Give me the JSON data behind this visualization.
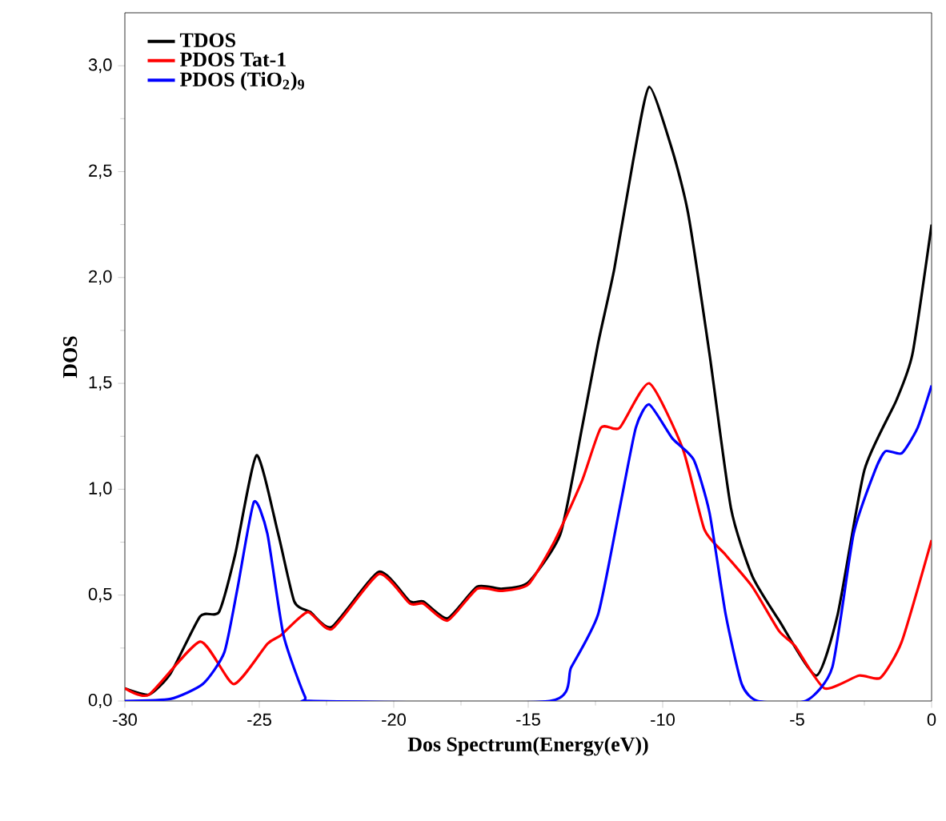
{
  "chart_data": {
    "type": "line",
    "xlabel": "Dos Spectrum(Energy(eV))",
    "ylabel": "DOS",
    "legend": "top left",
    "xlim": [
      -30,
      0
    ],
    "ylim": [
      0,
      3.25
    ],
    "xticks": [
      -30,
      -25,
      -20,
      -15,
      -10,
      -5,
      0
    ],
    "yticks": [
      {
        "value": 0,
        "label": "0,0"
      },
      {
        "value": 0.5,
        "label": "0,5"
      },
      {
        "value": 1,
        "label": "1,0"
      },
      {
        "value": 1.5,
        "label": "1,5"
      },
      {
        "value": 2,
        "label": "2,0"
      },
      {
        "value": 2.5,
        "label": "2,5"
      },
      {
        "value": 3,
        "label": "3,0"
      }
    ],
    "series": [
      {
        "name": "TDOS",
        "color": "#000000",
        "x": [
          -30,
          -29.1,
          -28.3,
          -27.2,
          -26.5,
          -25.9,
          -25.1,
          -24.3,
          -23.7,
          -23.1,
          -22.3,
          -20.55,
          -19.4,
          -18.9,
          -18.0,
          -16.9,
          -16.0,
          -15.0,
          -13.8,
          -13.0,
          -12.4,
          -11.8,
          -11.1,
          -10.5,
          -9.64,
          -9.05,
          -8.26,
          -7.46,
          -6.67,
          -5.67,
          -4.29,
          -3.49,
          -2.5,
          -1.31,
          -0.71,
          0
        ],
        "values": [
          0.06,
          0.03,
          0.13,
          0.4,
          0.42,
          0.69,
          1.16,
          0.79,
          0.47,
          0.42,
          0.35,
          0.61,
          0.47,
          0.47,
          0.39,
          0.54,
          0.53,
          0.56,
          0.79,
          1.29,
          1.69,
          2.04,
          2.55,
          2.9,
          2.6,
          2.3,
          1.64,
          0.91,
          0.59,
          0.38,
          0.12,
          0.41,
          1.09,
          1.42,
          1.64,
          2.25
        ]
      },
      {
        "name": "PDOS Tat-1",
        "color": "#ff0000",
        "x": [
          -30,
          -29.1,
          -27.2,
          -25.95,
          -24.7,
          -24.2,
          -23.2,
          -22.3,
          -20.55,
          -19.4,
          -18.9,
          -18.0,
          -16.9,
          -16.0,
          -15.0,
          -14.0,
          -13.0,
          -12.3,
          -11.6,
          -10.5,
          -9.25,
          -8.45,
          -7.66,
          -6.67,
          -5.67,
          -5.08,
          -3.99,
          -2.7,
          -1.9,
          -1.11,
          0
        ],
        "values": [
          0.06,
          0.03,
          0.28,
          0.08,
          0.27,
          0.31,
          0.42,
          0.34,
          0.6,
          0.46,
          0.46,
          0.38,
          0.53,
          0.52,
          0.55,
          0.76,
          1.04,
          1.29,
          1.29,
          1.5,
          1.19,
          0.81,
          0.69,
          0.54,
          0.33,
          0.26,
          0.06,
          0.12,
          0.11,
          0.28,
          0.76
        ]
      },
      {
        "name": "PDOS (TiO$_{2}$)$_{9}$",
        "color": "#0000ff",
        "x": [
          -30,
          -28.3,
          -27.1,
          -26.3,
          -25.8,
          -25.2,
          -24.7,
          -24.1,
          -23.3,
          -22.95,
          -14.2,
          -13.4,
          -12.4,
          -11.6,
          -11.0,
          -10.5,
          -9.64,
          -8.85,
          -8.26,
          -7.66,
          -7.06,
          -6.47,
          -4.68,
          -3.69,
          -2.9,
          -2.1,
          -1.71,
          -1.11,
          -0.52,
          0
        ],
        "values": [
          0,
          0.01,
          0.08,
          0.23,
          0.54,
          0.94,
          0.79,
          0.31,
          0.02,
          0,
          0,
          0.16,
          0.41,
          0.91,
          1.29,
          1.4,
          1.24,
          1.14,
          0.89,
          0.41,
          0.08,
          0,
          0,
          0.16,
          0.79,
          1.09,
          1.18,
          1.17,
          1.29,
          1.49
        ]
      }
    ]
  }
}
